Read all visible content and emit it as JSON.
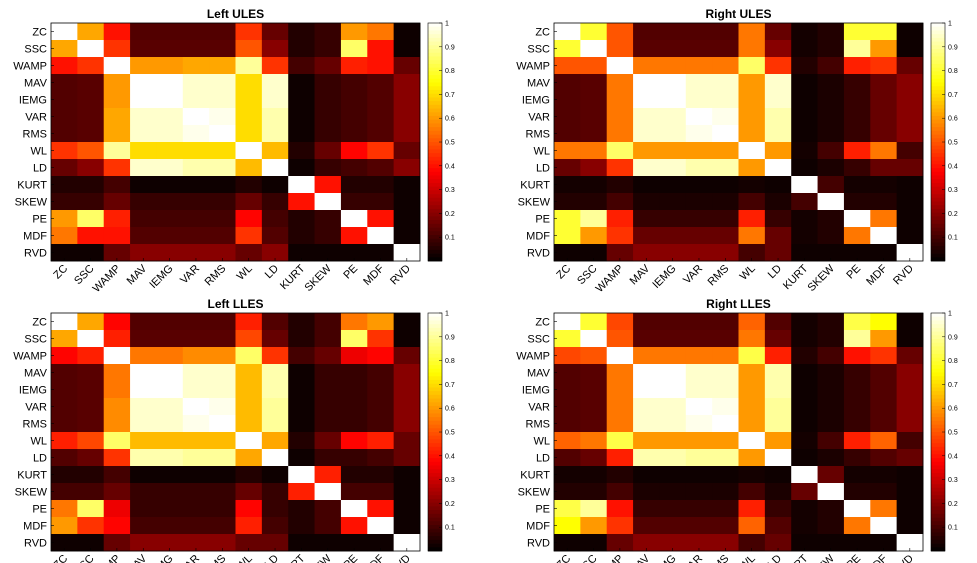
{
  "figure": {
    "labels": [
      "ZC",
      "SSC",
      "WAMP",
      "MAV",
      "IEMG",
      "VAR",
      "RMS",
      "WL",
      "LD",
      "KURT",
      "SKEW",
      "PE",
      "MDF",
      "RVD"
    ],
    "colorbar_ticks": [
      "0.1",
      "0.2",
      "0.3",
      "0.4",
      "0.5",
      "0.6",
      "0.7",
      "0.8",
      "0.9",
      "1"
    ],
    "colormap": "hot"
  },
  "chart_data": [
    {
      "type": "heatmap",
      "title": "Left ULES",
      "xlabels": [
        "ZC",
        "SSC",
        "WAMP",
        "MAV",
        "IEMG",
        "VAR",
        "RMS",
        "WL",
        "LD",
        "KURT",
        "SKEW",
        "PE",
        "MDF",
        "RVD"
      ],
      "ylabels": [
        "ZC",
        "SSC",
        "WAMP",
        "MAV",
        "IEMG",
        "VAR",
        "RMS",
        "WL",
        "LD",
        "KURT",
        "SKEW",
        "PE",
        "MDF",
        "RVD"
      ],
      "clim": [
        0,
        1
      ],
      "values": [
        [
          1.0,
          0.62,
          0.4,
          0.12,
          0.12,
          0.12,
          0.12,
          0.45,
          0.15,
          0.05,
          0.08,
          0.6,
          0.55,
          0.02
        ],
        [
          0.62,
          1.0,
          0.45,
          0.13,
          0.13,
          0.13,
          0.13,
          0.5,
          0.2,
          0.05,
          0.08,
          0.85,
          0.4,
          0.02
        ],
        [
          0.4,
          0.45,
          1.0,
          0.6,
          0.6,
          0.62,
          0.62,
          0.9,
          0.45,
          0.1,
          0.15,
          0.42,
          0.4,
          0.15
        ],
        [
          0.12,
          0.13,
          0.6,
          1.0,
          1.0,
          0.95,
          0.95,
          0.7,
          0.95,
          0.02,
          0.08,
          0.1,
          0.12,
          0.2
        ],
        [
          0.12,
          0.13,
          0.6,
          1.0,
          1.0,
          0.95,
          0.95,
          0.7,
          0.95,
          0.02,
          0.08,
          0.1,
          0.12,
          0.2
        ],
        [
          0.12,
          0.13,
          0.62,
          0.95,
          0.95,
          1.0,
          0.98,
          0.7,
          0.92,
          0.02,
          0.08,
          0.1,
          0.12,
          0.2
        ],
        [
          0.12,
          0.13,
          0.62,
          0.95,
          0.95,
          0.98,
          1.0,
          0.7,
          0.92,
          0.02,
          0.08,
          0.1,
          0.12,
          0.2
        ],
        [
          0.45,
          0.5,
          0.9,
          0.7,
          0.7,
          0.7,
          0.7,
          1.0,
          0.65,
          0.05,
          0.15,
          0.38,
          0.45,
          0.15
        ],
        [
          0.15,
          0.2,
          0.45,
          0.95,
          0.95,
          0.92,
          0.92,
          0.65,
          1.0,
          0.02,
          0.08,
          0.1,
          0.12,
          0.2
        ],
        [
          0.05,
          0.05,
          0.1,
          0.02,
          0.02,
          0.02,
          0.02,
          0.05,
          0.02,
          1.0,
          0.4,
          0.05,
          0.05,
          0.02
        ],
        [
          0.08,
          0.08,
          0.15,
          0.08,
          0.08,
          0.08,
          0.08,
          0.15,
          0.08,
          0.4,
          1.0,
          0.08,
          0.08,
          0.02
        ],
        [
          0.6,
          0.85,
          0.42,
          0.1,
          0.1,
          0.1,
          0.1,
          0.38,
          0.1,
          0.05,
          0.08,
          1.0,
          0.4,
          0.02
        ],
        [
          0.55,
          0.4,
          0.4,
          0.12,
          0.12,
          0.12,
          0.12,
          0.45,
          0.12,
          0.05,
          0.08,
          0.4,
          1.0,
          0.02
        ],
        [
          0.02,
          0.02,
          0.15,
          0.2,
          0.2,
          0.2,
          0.2,
          0.15,
          0.2,
          0.02,
          0.02,
          0.02,
          0.02,
          1.0
        ]
      ]
    },
    {
      "type": "heatmap",
      "title": "Right ULES",
      "xlabels": [
        "ZC",
        "SSC",
        "WAMP",
        "MAV",
        "IEMG",
        "VAR",
        "RMS",
        "WL",
        "LD",
        "KURT",
        "SKEW",
        "PE",
        "MDF",
        "RVD"
      ],
      "ylabels": [
        "ZC",
        "SSC",
        "WAMP",
        "MAV",
        "IEMG",
        "VAR",
        "RMS",
        "WL",
        "LD",
        "KURT",
        "SKEW",
        "PE",
        "MDF",
        "RVD"
      ],
      "clim": [
        0,
        1
      ],
      "values": [
        [
          1.0,
          0.8,
          0.5,
          0.12,
          0.12,
          0.12,
          0.12,
          0.55,
          0.15,
          0.03,
          0.05,
          0.8,
          0.8,
          0.02
        ],
        [
          0.8,
          1.0,
          0.5,
          0.13,
          0.13,
          0.13,
          0.13,
          0.55,
          0.2,
          0.03,
          0.05,
          0.9,
          0.6,
          0.02
        ],
        [
          0.5,
          0.5,
          1.0,
          0.55,
          0.55,
          0.55,
          0.55,
          0.85,
          0.45,
          0.05,
          0.1,
          0.42,
          0.45,
          0.15
        ],
        [
          0.12,
          0.13,
          0.55,
          1.0,
          1.0,
          0.95,
          0.95,
          0.6,
          0.95,
          0.02,
          0.04,
          0.08,
          0.15,
          0.2
        ],
        [
          0.12,
          0.13,
          0.55,
          1.0,
          1.0,
          0.95,
          0.95,
          0.6,
          0.95,
          0.02,
          0.04,
          0.08,
          0.15,
          0.2
        ],
        [
          0.12,
          0.13,
          0.55,
          0.95,
          0.95,
          1.0,
          0.98,
          0.6,
          0.92,
          0.02,
          0.04,
          0.08,
          0.15,
          0.2
        ],
        [
          0.12,
          0.13,
          0.55,
          0.95,
          0.95,
          0.98,
          1.0,
          0.6,
          0.92,
          0.02,
          0.04,
          0.08,
          0.15,
          0.2
        ],
        [
          0.55,
          0.55,
          0.85,
          0.6,
          0.6,
          0.6,
          0.6,
          1.0,
          0.6,
          0.03,
          0.1,
          0.42,
          0.55,
          0.1
        ],
        [
          0.15,
          0.2,
          0.45,
          0.95,
          0.95,
          0.92,
          0.92,
          0.6,
          1.0,
          0.02,
          0.04,
          0.08,
          0.15,
          0.15
        ],
        [
          0.03,
          0.03,
          0.05,
          0.02,
          0.02,
          0.02,
          0.02,
          0.03,
          0.02,
          1.0,
          0.1,
          0.03,
          0.03,
          0.02
        ],
        [
          0.05,
          0.05,
          0.1,
          0.04,
          0.04,
          0.04,
          0.04,
          0.1,
          0.04,
          0.1,
          1.0,
          0.05,
          0.05,
          0.02
        ],
        [
          0.8,
          0.9,
          0.42,
          0.08,
          0.08,
          0.08,
          0.08,
          0.42,
          0.08,
          0.03,
          0.05,
          1.0,
          0.55,
          0.02
        ],
        [
          0.8,
          0.6,
          0.45,
          0.15,
          0.15,
          0.15,
          0.15,
          0.55,
          0.15,
          0.03,
          0.05,
          0.55,
          1.0,
          0.02
        ],
        [
          0.02,
          0.02,
          0.15,
          0.2,
          0.2,
          0.2,
          0.2,
          0.1,
          0.15,
          0.02,
          0.02,
          0.02,
          0.02,
          1.0
        ]
      ]
    },
    {
      "type": "heatmap",
      "title": "Left LLES",
      "xlabels": [
        "ZC",
        "SSC",
        "WAMP",
        "MAV",
        "IEMG",
        "VAR",
        "RMS",
        "WL",
        "LD",
        "KURT",
        "SKEW",
        "PE",
        "MDF",
        "RVD"
      ],
      "ylabels": [
        "ZC",
        "SSC",
        "WAMP",
        "MAV",
        "IEMG",
        "VAR",
        "RMS",
        "WL",
        "LD",
        "KURT",
        "SKEW",
        "PE",
        "MDF",
        "RVD"
      ],
      "clim": [
        0,
        1
      ],
      "values": [
        [
          1.0,
          0.62,
          0.38,
          0.12,
          0.12,
          0.12,
          0.12,
          0.42,
          0.12,
          0.05,
          0.1,
          0.55,
          0.6,
          0.02
        ],
        [
          0.62,
          1.0,
          0.42,
          0.13,
          0.13,
          0.13,
          0.13,
          0.48,
          0.15,
          0.05,
          0.1,
          0.85,
          0.45,
          0.02
        ],
        [
          0.38,
          0.42,
          1.0,
          0.55,
          0.55,
          0.58,
          0.58,
          0.85,
          0.45,
          0.1,
          0.15,
          0.35,
          0.38,
          0.15
        ],
        [
          0.12,
          0.13,
          0.55,
          1.0,
          1.0,
          0.95,
          0.95,
          0.65,
          0.92,
          0.02,
          0.08,
          0.08,
          0.1,
          0.2
        ],
        [
          0.12,
          0.13,
          0.55,
          1.0,
          1.0,
          0.95,
          0.95,
          0.65,
          0.92,
          0.02,
          0.08,
          0.08,
          0.1,
          0.2
        ],
        [
          0.12,
          0.13,
          0.58,
          0.95,
          0.95,
          1.0,
          0.98,
          0.65,
          0.9,
          0.02,
          0.08,
          0.08,
          0.1,
          0.2
        ],
        [
          0.12,
          0.13,
          0.58,
          0.95,
          0.95,
          0.98,
          1.0,
          0.65,
          0.9,
          0.02,
          0.08,
          0.08,
          0.1,
          0.2
        ],
        [
          0.42,
          0.48,
          0.85,
          0.65,
          0.65,
          0.65,
          0.65,
          1.0,
          0.62,
          0.05,
          0.15,
          0.38,
          0.42,
          0.15
        ],
        [
          0.12,
          0.15,
          0.45,
          0.92,
          0.92,
          0.9,
          0.9,
          0.62,
          1.0,
          0.02,
          0.08,
          0.08,
          0.1,
          0.15
        ],
        [
          0.05,
          0.05,
          0.1,
          0.02,
          0.02,
          0.02,
          0.02,
          0.05,
          0.02,
          1.0,
          0.42,
          0.05,
          0.05,
          0.02
        ],
        [
          0.1,
          0.1,
          0.15,
          0.08,
          0.08,
          0.08,
          0.08,
          0.15,
          0.08,
          0.42,
          1.0,
          0.1,
          0.1,
          0.02
        ],
        [
          0.55,
          0.85,
          0.35,
          0.08,
          0.08,
          0.08,
          0.08,
          0.38,
          0.08,
          0.05,
          0.1,
          1.0,
          0.4,
          0.02
        ],
        [
          0.6,
          0.45,
          0.38,
          0.1,
          0.1,
          0.1,
          0.1,
          0.42,
          0.1,
          0.05,
          0.1,
          0.4,
          1.0,
          0.02
        ],
        [
          0.02,
          0.02,
          0.15,
          0.2,
          0.2,
          0.2,
          0.2,
          0.15,
          0.15,
          0.02,
          0.02,
          0.02,
          0.02,
          1.0
        ]
      ]
    },
    {
      "type": "heatmap",
      "title": "Right LLES",
      "xlabels": [
        "ZC",
        "SSC",
        "WAMP",
        "MAV",
        "IEMG",
        "VAR",
        "RMS",
        "WL",
        "LD",
        "KURT",
        "SKEW",
        "PE",
        "MDF",
        "RVD"
      ],
      "ylabels": [
        "ZC",
        "SSC",
        "WAMP",
        "MAV",
        "IEMG",
        "VAR",
        "RMS",
        "WL",
        "LD",
        "KURT",
        "SKEW",
        "PE",
        "MDF",
        "RVD"
      ],
      "clim": [
        0,
        1
      ],
      "values": [
        [
          1.0,
          0.8,
          0.48,
          0.12,
          0.12,
          0.12,
          0.12,
          0.52,
          0.12,
          0.03,
          0.05,
          0.82,
          0.75,
          0.02
        ],
        [
          0.8,
          1.0,
          0.5,
          0.13,
          0.13,
          0.13,
          0.13,
          0.55,
          0.15,
          0.03,
          0.05,
          0.9,
          0.6,
          0.02
        ],
        [
          0.48,
          0.5,
          1.0,
          0.55,
          0.55,
          0.55,
          0.55,
          0.82,
          0.42,
          0.05,
          0.1,
          0.4,
          0.45,
          0.15
        ],
        [
          0.12,
          0.13,
          0.55,
          1.0,
          1.0,
          0.95,
          0.95,
          0.6,
          0.92,
          0.02,
          0.04,
          0.08,
          0.12,
          0.2
        ],
        [
          0.12,
          0.13,
          0.55,
          1.0,
          1.0,
          0.95,
          0.95,
          0.6,
          0.92,
          0.02,
          0.04,
          0.08,
          0.12,
          0.2
        ],
        [
          0.12,
          0.13,
          0.55,
          0.95,
          0.95,
          1.0,
          0.98,
          0.6,
          0.9,
          0.02,
          0.04,
          0.08,
          0.12,
          0.2
        ],
        [
          0.12,
          0.13,
          0.55,
          0.95,
          0.95,
          0.98,
          1.0,
          0.6,
          0.9,
          0.02,
          0.04,
          0.08,
          0.12,
          0.2
        ],
        [
          0.52,
          0.55,
          0.82,
          0.6,
          0.6,
          0.6,
          0.6,
          1.0,
          0.6,
          0.03,
          0.1,
          0.42,
          0.52,
          0.1
        ],
        [
          0.12,
          0.15,
          0.42,
          0.92,
          0.92,
          0.9,
          0.9,
          0.6,
          1.0,
          0.02,
          0.04,
          0.08,
          0.12,
          0.15
        ],
        [
          0.03,
          0.03,
          0.05,
          0.02,
          0.02,
          0.02,
          0.02,
          0.03,
          0.02,
          1.0,
          0.15,
          0.03,
          0.03,
          0.02
        ],
        [
          0.05,
          0.05,
          0.1,
          0.04,
          0.04,
          0.04,
          0.04,
          0.1,
          0.04,
          0.15,
          1.0,
          0.05,
          0.05,
          0.02
        ],
        [
          0.82,
          0.9,
          0.4,
          0.08,
          0.08,
          0.08,
          0.08,
          0.42,
          0.08,
          0.03,
          0.05,
          1.0,
          0.55,
          0.02
        ],
        [
          0.75,
          0.6,
          0.45,
          0.12,
          0.12,
          0.12,
          0.12,
          0.52,
          0.12,
          0.03,
          0.05,
          0.55,
          1.0,
          0.02
        ],
        [
          0.02,
          0.02,
          0.15,
          0.2,
          0.2,
          0.2,
          0.2,
          0.1,
          0.15,
          0.02,
          0.02,
          0.02,
          0.02,
          1.0
        ]
      ]
    }
  ]
}
